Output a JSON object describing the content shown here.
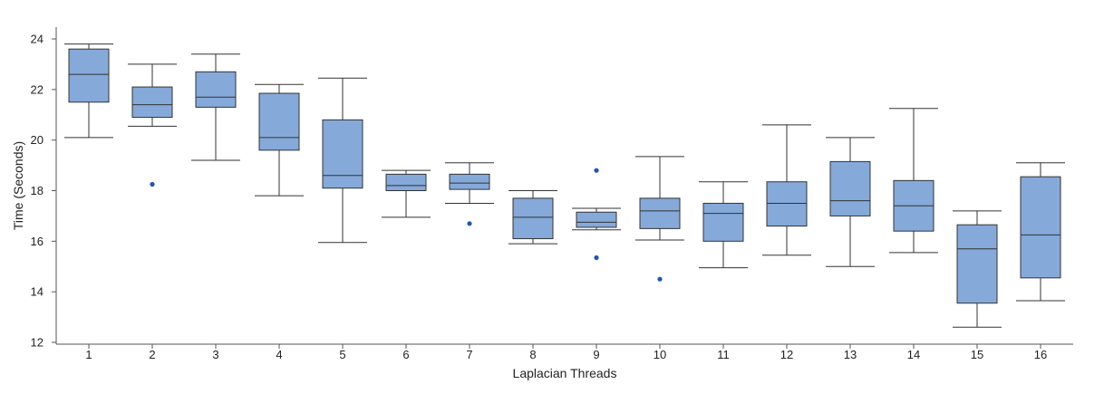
{
  "chart_data": {
    "type": "boxplot",
    "xlabel": "Laplacian Threads",
    "ylabel": "Time (Seconds)",
    "ylim": [
      12,
      24
    ],
    "yticks": [
      12,
      14,
      16,
      18,
      20,
      22,
      24
    ],
    "grid": false,
    "categories": [
      "1",
      "2",
      "3",
      "4",
      "5",
      "6",
      "7",
      "8",
      "9",
      "10",
      "11",
      "12",
      "13",
      "14",
      "15",
      "16"
    ],
    "box_color": "#85a9d9",
    "outlier_color": "#1f57b0",
    "boxes": [
      {
        "category": "1",
        "whisker_low": 20.1,
        "q1": 21.5,
        "median": 22.6,
        "q3": 23.6,
        "whisker_high": 23.8,
        "outliers": []
      },
      {
        "category": "2",
        "whisker_low": 20.55,
        "q1": 20.9,
        "median": 21.4,
        "q3": 22.1,
        "whisker_high": 23.0,
        "outliers": [
          18.25
        ]
      },
      {
        "category": "3",
        "whisker_low": 19.2,
        "q1": 21.3,
        "median": 21.7,
        "q3": 22.7,
        "whisker_high": 23.4,
        "outliers": []
      },
      {
        "category": "4",
        "whisker_low": 17.8,
        "q1": 19.6,
        "median": 20.1,
        "q3": 21.85,
        "whisker_high": 22.2,
        "outliers": []
      },
      {
        "category": "5",
        "whisker_low": 15.95,
        "q1": 18.1,
        "median": 18.6,
        "q3": 20.8,
        "whisker_high": 22.45,
        "outliers": []
      },
      {
        "category": "6",
        "whisker_low": 16.95,
        "q1": 18.0,
        "median": 18.2,
        "q3": 18.65,
        "whisker_high": 18.8,
        "outliers": []
      },
      {
        "category": "7",
        "whisker_low": 17.5,
        "q1": 18.05,
        "median": 18.3,
        "q3": 18.65,
        "whisker_high": 19.1,
        "outliers": [
          16.7
        ]
      },
      {
        "category": "8",
        "whisker_low": 15.9,
        "q1": 16.1,
        "median": 16.95,
        "q3": 17.7,
        "whisker_high": 18.0,
        "outliers": []
      },
      {
        "category": "9",
        "whisker_low": 16.45,
        "q1": 16.55,
        "median": 16.75,
        "q3": 17.15,
        "whisker_high": 17.3,
        "outliers": [
          18.8,
          15.35
        ]
      },
      {
        "category": "10",
        "whisker_low": 16.05,
        "q1": 16.5,
        "median": 17.2,
        "q3": 17.7,
        "whisker_high": 19.35,
        "outliers": [
          14.5
        ]
      },
      {
        "category": "11",
        "whisker_low": 14.95,
        "q1": 16.0,
        "median": 17.1,
        "q3": 17.5,
        "whisker_high": 18.35,
        "outliers": []
      },
      {
        "category": "12",
        "whisker_low": 15.45,
        "q1": 16.6,
        "median": 17.5,
        "q3": 18.35,
        "whisker_high": 20.6,
        "outliers": []
      },
      {
        "category": "13",
        "whisker_low": 15.0,
        "q1": 17.0,
        "median": 17.6,
        "q3": 19.15,
        "whisker_high": 20.1,
        "outliers": []
      },
      {
        "category": "14",
        "whisker_low": 15.55,
        "q1": 16.4,
        "median": 17.4,
        "q3": 18.4,
        "whisker_high": 21.25,
        "outliers": []
      },
      {
        "category": "15",
        "whisker_low": 12.6,
        "q1": 13.55,
        "median": 15.7,
        "q3": 16.65,
        "whisker_high": 17.2,
        "outliers": []
      },
      {
        "category": "16",
        "whisker_low": 13.65,
        "q1": 14.55,
        "median": 16.25,
        "q3": 18.55,
        "whisker_high": 19.1,
        "outliers": []
      }
    ]
  }
}
